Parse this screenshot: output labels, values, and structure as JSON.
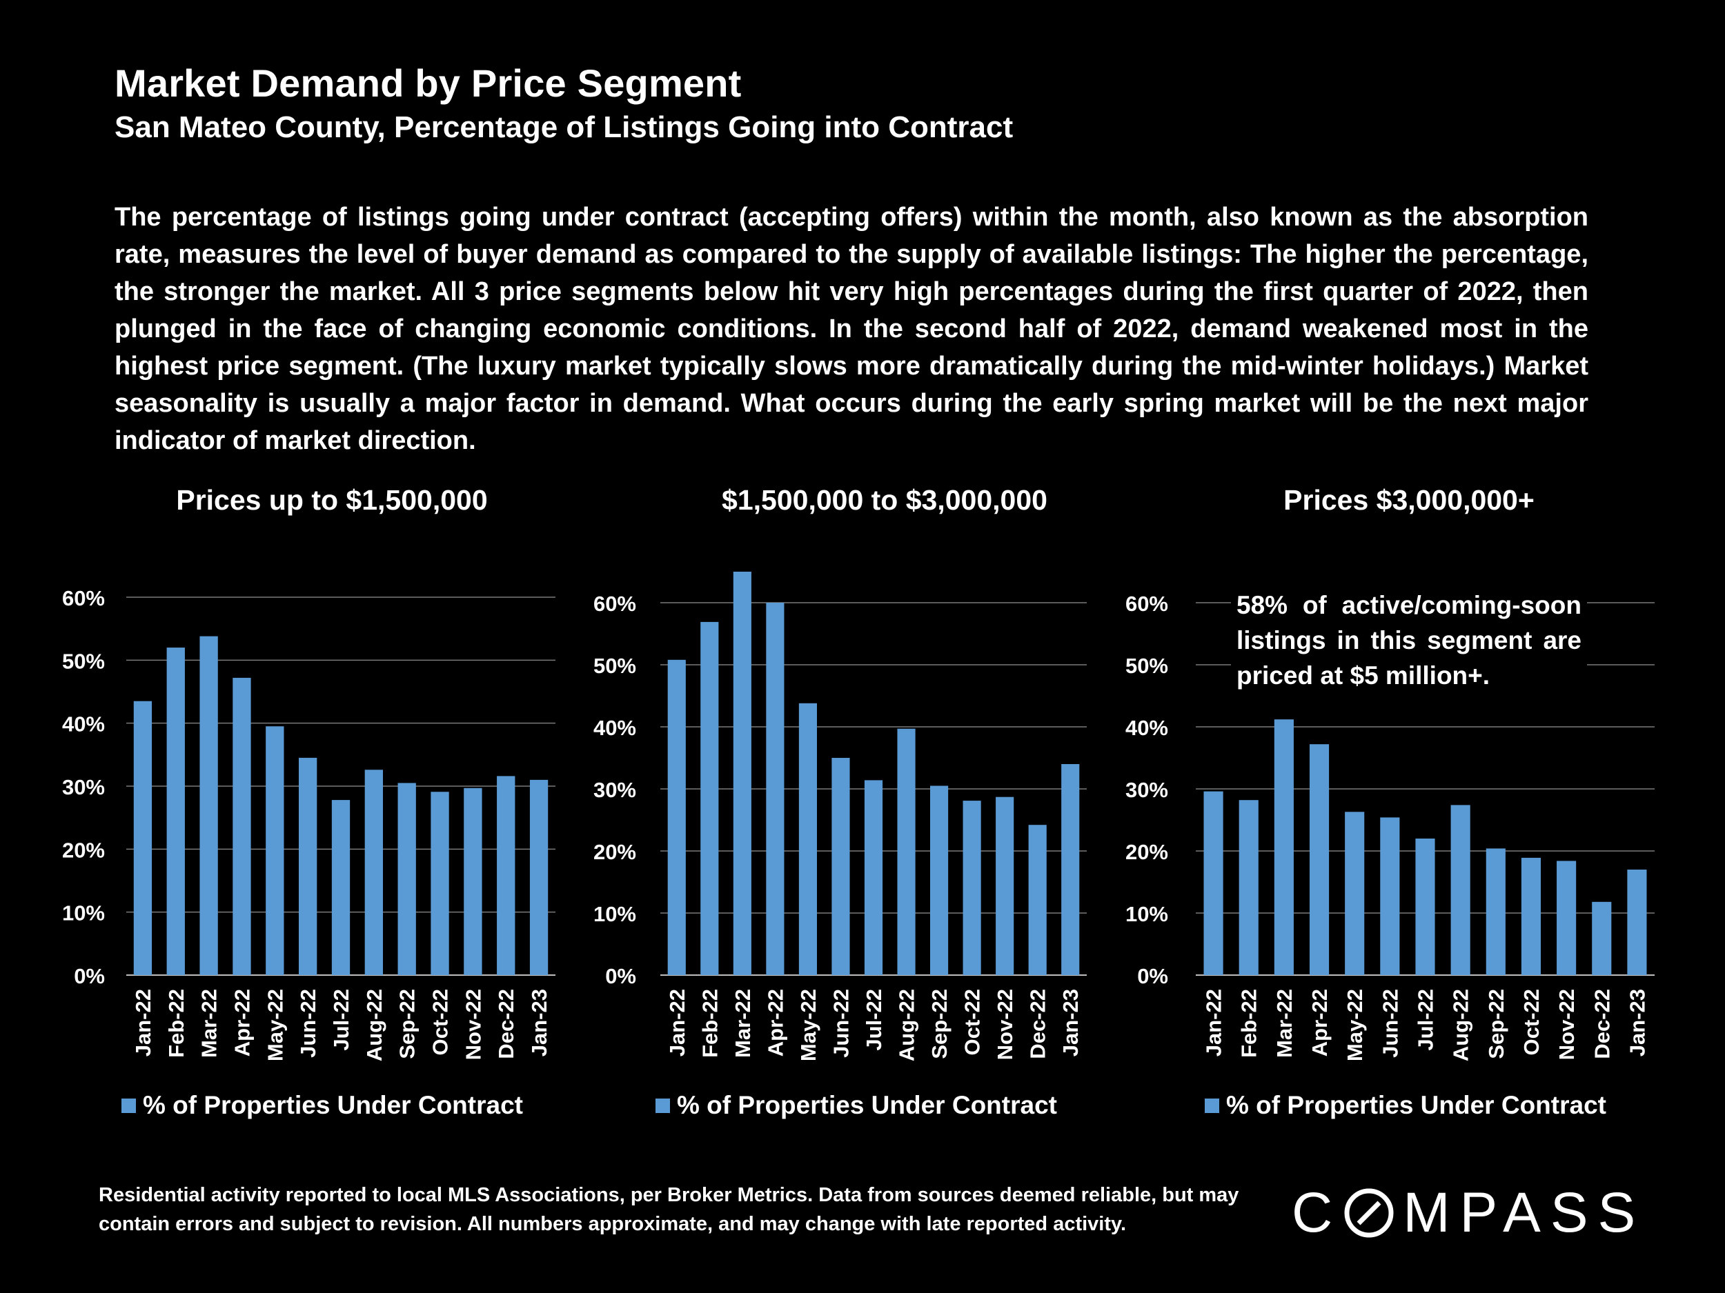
{
  "header": {
    "title": "Market Demand by Price Segment",
    "subtitle": "San Mateo County, Percentage of Listings Going into Contract"
  },
  "paragraph": "The percentage of listings going under contract (accepting offers) within the month, also known as the absorption rate, measures the level of buyer demand as compared to the supply of available listings:  The higher the percentage, the stronger the market. All 3 price segments below hit very high percentages during the first quarter of 2022, then plunged in the face of changing economic conditions. In the second half of 2022, demand weakened most in the highest price segment. (The luxury market typically slows more dramatically during the mid-winter holidays.) Market seasonality is usually a major factor in demand. What occurs during the early spring market will be the next major indicator of market direction.",
  "annotation": "58% of active/coming-soon listings in this segment are priced at $5 million+.",
  "footnote": "Residential activity reported to local MLS Associations, per Broker Metrics. Data from sources deemed reliable, but may contain errors and subject to revision. All numbers approximate, and may change with late reported activity.",
  "logo": {
    "text_left": "C",
    "text_right": "MPASS"
  },
  "colors": {
    "background": "#000000",
    "bar": "#5B9BD5",
    "gridline": "#7a7a7a",
    "text": "#ffffff"
  },
  "chart_data": [
    {
      "type": "bar",
      "title": "Prices up to $1,500,000",
      "categories": [
        "Jan-22",
        "Feb-22",
        "Mar-22",
        "Apr-22",
        "May-22",
        "Jun-22",
        "Jul-22",
        "Aug-22",
        "Sep-22",
        "Oct-22",
        "Nov-22",
        "Dec-22",
        "Jan-23"
      ],
      "series": [
        {
          "name": "% of Properties Under Contract",
          "values": [
            43.5,
            52,
            53.8,
            47.2,
            39.5,
            34.5,
            27.8,
            32.6,
            30.5,
            29.1,
            29.7,
            31.6,
            31
          ]
        }
      ],
      "yticks": [
        "0%",
        "10%",
        "20%",
        "30%",
        "40%",
        "50%",
        "60%"
      ],
      "ylim": [
        0,
        60
      ],
      "legend": "bottom",
      "grid": true
    },
    {
      "type": "bar",
      "title": "$1,500,000 to $3,000,000",
      "categories": [
        "Jan-22",
        "Feb-22",
        "Mar-22",
        "Apr-22",
        "May-22",
        "Jun-22",
        "Jul-22",
        "Aug-22",
        "Sep-22",
        "Oct-22",
        "Nov-22",
        "Dec-22",
        "Jan-23"
      ],
      "series": [
        {
          "name": "% of Properties Under Contract",
          "values": [
            50.8,
            56.9,
            65,
            60,
            43.8,
            35,
            31.4,
            39.7,
            30.5,
            28.1,
            28.7,
            24.2,
            34
          ]
        }
      ],
      "yticks": [
        "0%",
        "10%",
        "20%",
        "30%",
        "40%",
        "50%",
        "60%"
      ],
      "ylim": [
        0,
        60
      ],
      "legend": "bottom",
      "grid": true
    },
    {
      "type": "bar",
      "title": "Prices $3,000,000+",
      "categories": [
        "Jan-22",
        "Feb-22",
        "Mar-22",
        "Apr-22",
        "May-22",
        "Jun-22",
        "Jul-22",
        "Aug-22",
        "Sep-22",
        "Oct-22",
        "Nov-22",
        "Dec-22",
        "Jan-23"
      ],
      "series": [
        {
          "name": "% of Properties Under Contract",
          "values": [
            29.6,
            28.2,
            41.2,
            37.2,
            26.3,
            25.4,
            22,
            27.4,
            20.4,
            18.9,
            18.4,
            11.8,
            17
          ]
        }
      ],
      "yticks": [
        "0%",
        "10%",
        "20%",
        "30%",
        "40%",
        "50%",
        "60%"
      ],
      "ylim": [
        0,
        60
      ],
      "legend": "bottom",
      "grid": true
    }
  ]
}
